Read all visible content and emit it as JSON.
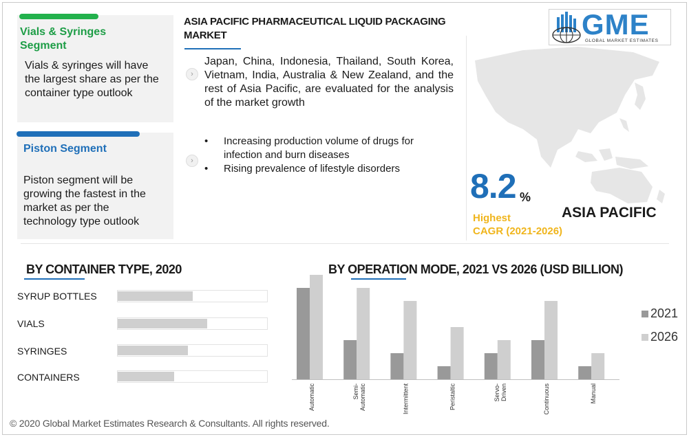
{
  "cards": [
    {
      "title": "Vials & Syringes Segment",
      "body": "Vials & syringes will have the largest share as per the container type outlook",
      "accent": "#22b14c"
    },
    {
      "title": "Piston Segment",
      "body": "Piston segment will be growing the fastest in the market as per the technology type outlook",
      "accent": "#1f6fb8"
    }
  ],
  "main": {
    "title": "ASIA PACIFIC PHARMACEUTICAL LIQUID PACKAGING MARKET",
    "paragraph": "Japan, China, Indonesia, Thailand, South Korea, Vietnam, India, Australia & New Zealand, and the rest of Asia Pacific, are evaluated for the analysis of the market growth",
    "bullets": [
      "Increasing production volume of drugs for infection and burn diseases",
      "Rising prevalence of lifestyle disorders"
    ],
    "arrow_icon": "chevron-right-icon"
  },
  "logo": {
    "text": "GME",
    "subtitle": "GLOBAL MARKET ESTIMATES",
    "color": "#2d82c8"
  },
  "stats": {
    "cagr_value": "8.2",
    "cagr_unit": "%",
    "cagr_label_1": "Highest",
    "cagr_label_2": "CAGR (2021-2026)",
    "region": "ASIA PACIFIC"
  },
  "chart_data": [
    {
      "type": "bar",
      "orientation": "horizontal",
      "title": "BY CONTAINER TYPE, 2020",
      "categories": [
        "SYRUP BOTTLES",
        "VIALS",
        "SYRINGES",
        "CONTAINERS"
      ],
      "values": [
        0.5,
        0.6,
        0.47,
        0.38
      ],
      "xlim": [
        0,
        1
      ],
      "bar_color": "#cfcfcf"
    },
    {
      "type": "bar",
      "title": "BY OPERATION MODE, 2021 VS 2026 (USD BILLION)",
      "categories": [
        "Automatic",
        "Semi-Automatic",
        "Intermittent",
        "Peristaltic",
        "Servo-Driven",
        "Continuous",
        "Manual"
      ],
      "category_lines": [
        [
          "Automatic"
        ],
        [
          "Semi-",
          "Automatic"
        ],
        [
          "Intermittent"
        ],
        [
          "Peristaltic"
        ],
        [
          "Servo-",
          "Driven"
        ],
        [
          "Continuous"
        ],
        [
          "Manual"
        ]
      ],
      "series": [
        {
          "name": "2021",
          "values": [
            3.5,
            1.5,
            1.0,
            0.5,
            1.0,
            1.5,
            0.5
          ],
          "color": "#999999"
        },
        {
          "name": "2026",
          "values": [
            4.0,
            3.5,
            3.0,
            2.0,
            1.5,
            3.0,
            1.0
          ],
          "color": "#cfcfcf"
        }
      ],
      "category_offsets": [
        0,
        0,
        0,
        0,
        0,
        0,
        0
      ],
      "legend_position": "right",
      "grid": false
    }
  ],
  "footer": "© 2020 Global Market Estimates Research & Consultants. All rights reserved."
}
